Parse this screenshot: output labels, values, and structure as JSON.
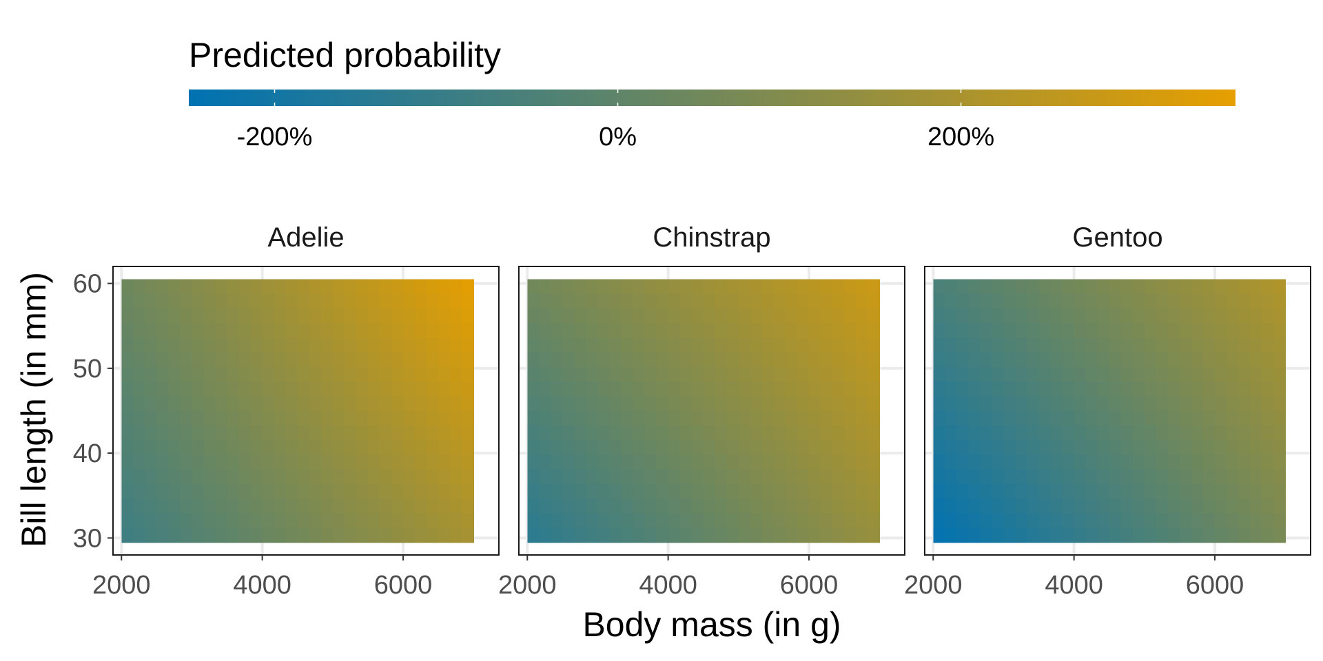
{
  "chart_data": {
    "type": "heatmap",
    "legend": {
      "title": "Predicted probability",
      "placement": "top",
      "range": [
        -2.5,
        3.6
      ],
      "breaks": [
        -2,
        0,
        2
      ],
      "labels": [
        "-200%",
        "0%",
        "200%"
      ],
      "low_color": "#0072B2",
      "high_color": "#E69F00"
    },
    "xlabel": "Body mass (in g)",
    "ylabel": "Bill length (in mm)",
    "xlim": [
      1880,
      7360
    ],
    "ylim": [
      28.0,
      62.0
    ],
    "x_ticks": [
      2000,
      4000,
      6000
    ],
    "x_tick_labels": [
      "2000",
      "4000",
      "6000"
    ],
    "y_ticks": [
      30,
      40,
      50,
      60
    ],
    "y_tick_labels": [
      "30",
      "40",
      "50",
      "60"
    ],
    "grid": true,
    "tile_extent": {
      "x": [
        2000,
        7000
      ],
      "y": [
        29.5,
        60.5
      ]
    },
    "facets": [
      {
        "label": "Adelie",
        "corners": {
          "x_min_y_min": -0.9,
          "x_max_y_min": 1.9,
          "x_min_y_max": 0.4,
          "x_max_y_max": 3.6
        }
      },
      {
        "label": "Chinstrap",
        "corners": {
          "x_min_y_min": -1.4,
          "x_max_y_min": 1.5,
          "x_min_y_max": 0.5,
          "x_max_y_max": 2.9
        }
      },
      {
        "label": "Gentoo",
        "corners": {
          "x_min_y_min": -2.5,
          "x_max_y_min": 0.7,
          "x_min_y_max": -0.5,
          "x_max_y_max": 2.2
        }
      }
    ]
  }
}
